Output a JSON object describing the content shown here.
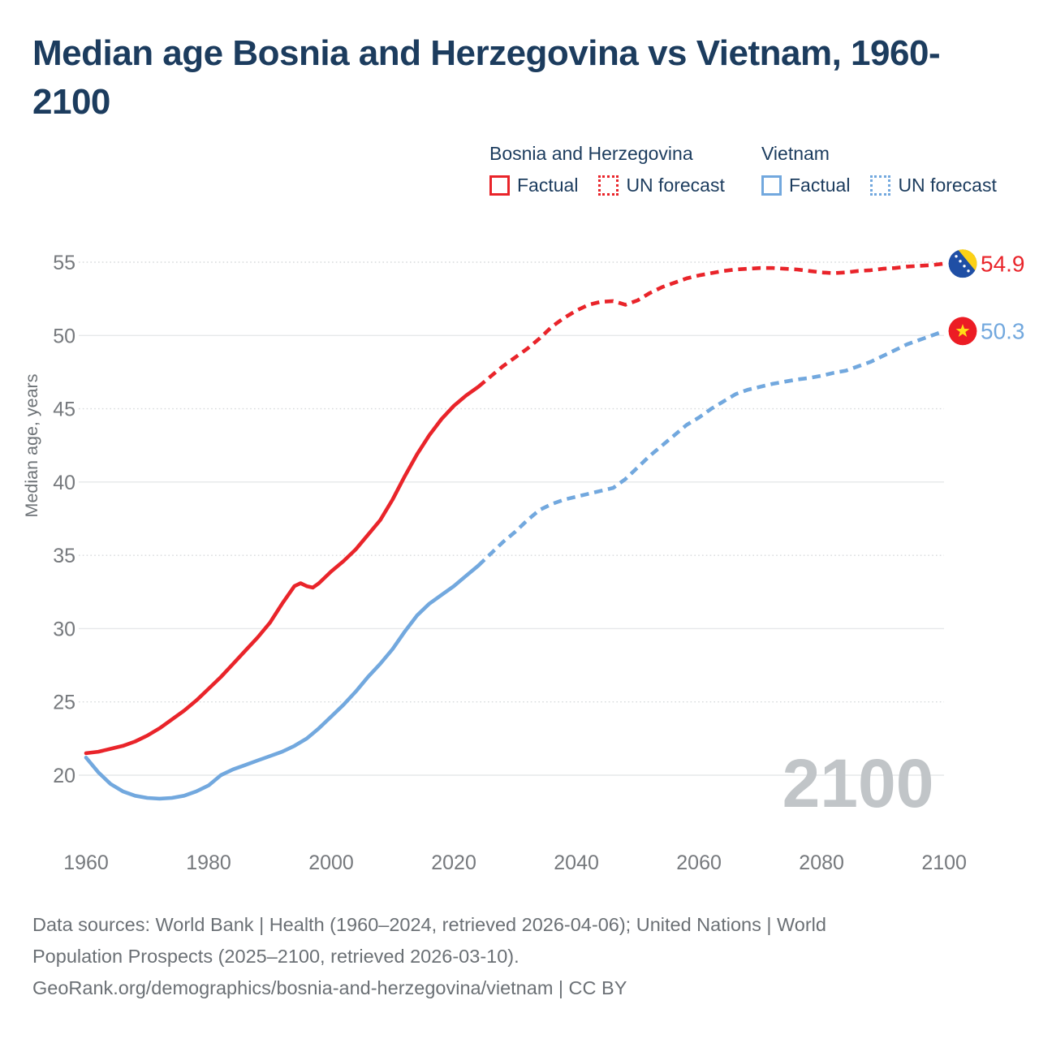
{
  "title": {
    "line1": "Median age Bosnia and Herzegovina vs Vietnam, 1960-",
    "line2": "2100"
  },
  "legend": {
    "groups": [
      {
        "name": "Bosnia and Herzegovina",
        "color": "#e9242a",
        "items": [
          {
            "label": "Factual",
            "line_style": "solid"
          },
          {
            "label": "UN forecast",
            "line_style": "dotted"
          }
        ]
      },
      {
        "name": "Vietnam",
        "color": "#72a8de",
        "items": [
          {
            "label": "Factual",
            "line_style": "solid"
          },
          {
            "label": "UN forecast",
            "line_style": "dotted"
          }
        ]
      }
    ]
  },
  "watermark": "2100",
  "y_axis": {
    "label": "Median age, years",
    "ticks": [
      20,
      25,
      30,
      35,
      40,
      45,
      50,
      55
    ]
  },
  "x_axis": {
    "ticks": [
      1960,
      1980,
      2000,
      2020,
      2040,
      2060,
      2080,
      2100
    ]
  },
  "end_labels": [
    {
      "id": "bosnia-and-herzegovina",
      "flag": "bosnia-and-herzegovina",
      "value": "54.9",
      "numeric": 54.9,
      "color": "#e9242a"
    },
    {
      "id": "vietnam",
      "flag": "vietnam",
      "value": "50.3",
      "numeric": 50.3,
      "color": "#72a8de"
    }
  ],
  "footer": {
    "lines": [
      "Data sources: World Bank | Health (1960–2024, retrieved 2026-04-06); United Nations | World",
      "Population Prospects (2025–2100, retrieved 2026-03-10).",
      "GeoRank.org/demographics/bosnia-and-herzegovina/vietnam | CC BY"
    ]
  },
  "theme": {
    "title_color": "#1c3c5e",
    "bosnia_color": "#e9242a",
    "vietnam_color": "#72a8de",
    "grid_solid": "#e6e8ea",
    "grid_dotted": "#d7dadc",
    "tick_color": "#76797d",
    "axis_label_color": "#6e7377",
    "watermark_color": "#c1c5c8",
    "footer_color": "#6b7075",
    "flag_bosnia_blue": "#1f4fa5",
    "flag_yellow": "#fcd116",
    "flag_vietnam_red": "#ec1c24",
    "flag_star_yellow": "#ffde17"
  },
  "chart_data": {
    "type": "line",
    "title": "Median age Bosnia and Herzegovina vs Vietnam, 1960-2100",
    "xlabel": "",
    "ylabel": "Median age, years",
    "xlim": [
      1958,
      2114
    ],
    "ylim": [
      16,
      57
    ],
    "grid": "horizontal",
    "legend_position": "top",
    "series": [
      {
        "id": "bosnia-factual",
        "name": "Bosnia and Herzegovina — Factual",
        "color": "#e9242a",
        "style": "solid",
        "points": [
          [
            1960,
            21.5
          ],
          [
            1962,
            21.6
          ],
          [
            1964,
            21.8
          ],
          [
            1966,
            22.0
          ],
          [
            1968,
            22.3
          ],
          [
            1970,
            22.7
          ],
          [
            1972,
            23.2
          ],
          [
            1974,
            23.8
          ],
          [
            1976,
            24.4
          ],
          [
            1978,
            25.1
          ],
          [
            1980,
            25.9
          ],
          [
            1982,
            26.7
          ],
          [
            1984,
            27.6
          ],
          [
            1986,
            28.5
          ],
          [
            1988,
            29.4
          ],
          [
            1990,
            30.4
          ],
          [
            1992,
            31.7
          ],
          [
            1994,
            32.9
          ],
          [
            1995,
            33.1
          ],
          [
            1996,
            32.9
          ],
          [
            1997,
            32.8
          ],
          [
            1998,
            33.1
          ],
          [
            2000,
            33.9
          ],
          [
            2002,
            34.6
          ],
          [
            2004,
            35.4
          ],
          [
            2006,
            36.4
          ],
          [
            2008,
            37.4
          ],
          [
            2010,
            38.8
          ],
          [
            2012,
            40.4
          ],
          [
            2014,
            41.9
          ],
          [
            2016,
            43.2
          ],
          [
            2018,
            44.3
          ],
          [
            2020,
            45.2
          ],
          [
            2022,
            45.9
          ],
          [
            2024,
            46.5
          ]
        ]
      },
      {
        "id": "bosnia-un-forecast",
        "name": "Bosnia and Herzegovina — UN forecast",
        "color": "#e9242a",
        "style": "dashed",
        "points": [
          [
            2024,
            46.5
          ],
          [
            2026,
            47.2
          ],
          [
            2028,
            47.9
          ],
          [
            2030,
            48.5
          ],
          [
            2032,
            49.1
          ],
          [
            2034,
            49.8
          ],
          [
            2036,
            50.6
          ],
          [
            2038,
            51.2
          ],
          [
            2040,
            51.7
          ],
          [
            2042,
            52.1
          ],
          [
            2044,
            52.3
          ],
          [
            2046,
            52.35
          ],
          [
            2048,
            52.1
          ],
          [
            2050,
            52.4
          ],
          [
            2052,
            52.9
          ],
          [
            2054,
            53.3
          ],
          [
            2056,
            53.6
          ],
          [
            2058,
            53.9
          ],
          [
            2060,
            54.1
          ],
          [
            2062,
            54.25
          ],
          [
            2064,
            54.4
          ],
          [
            2066,
            54.5
          ],
          [
            2068,
            54.55
          ],
          [
            2070,
            54.6
          ],
          [
            2072,
            54.6
          ],
          [
            2074,
            54.55
          ],
          [
            2076,
            54.5
          ],
          [
            2078,
            54.4
          ],
          [
            2080,
            54.3
          ],
          [
            2082,
            54.25
          ],
          [
            2084,
            54.3
          ],
          [
            2086,
            54.4
          ],
          [
            2088,
            54.45
          ],
          [
            2090,
            54.55
          ],
          [
            2092,
            54.6
          ],
          [
            2094,
            54.7
          ],
          [
            2096,
            54.75
          ],
          [
            2098,
            54.8
          ],
          [
            2100,
            54.9
          ]
        ]
      },
      {
        "id": "vietnam-factual",
        "name": "Vietnam — Factual",
        "color": "#72a8de",
        "style": "solid",
        "points": [
          [
            1960,
            21.2
          ],
          [
            1962,
            20.2
          ],
          [
            1964,
            19.4
          ],
          [
            1966,
            18.9
          ],
          [
            1968,
            18.6
          ],
          [
            1970,
            18.45
          ],
          [
            1972,
            18.4
          ],
          [
            1974,
            18.45
          ],
          [
            1976,
            18.6
          ],
          [
            1978,
            18.9
          ],
          [
            1980,
            19.3
          ],
          [
            1982,
            20.0
          ],
          [
            1984,
            20.4
          ],
          [
            1986,
            20.7
          ],
          [
            1988,
            21.0
          ],
          [
            1990,
            21.3
          ],
          [
            1992,
            21.6
          ],
          [
            1994,
            22.0
          ],
          [
            1996,
            22.5
          ],
          [
            1998,
            23.2
          ],
          [
            2000,
            24.0
          ],
          [
            2002,
            24.8
          ],
          [
            2004,
            25.7
          ],
          [
            2006,
            26.7
          ],
          [
            2008,
            27.6
          ],
          [
            2010,
            28.6
          ],
          [
            2012,
            29.8
          ],
          [
            2014,
            30.9
          ],
          [
            2016,
            31.7
          ],
          [
            2018,
            32.3
          ],
          [
            2020,
            32.9
          ],
          [
            2022,
            33.6
          ],
          [
            2024,
            34.3
          ]
        ]
      },
      {
        "id": "vietnam-un-forecast",
        "name": "Vietnam — UN forecast",
        "color": "#72a8de",
        "style": "dashed",
        "points": [
          [
            2024,
            34.3
          ],
          [
            2026,
            35.1
          ],
          [
            2028,
            35.9
          ],
          [
            2030,
            36.6
          ],
          [
            2032,
            37.4
          ],
          [
            2034,
            38.1
          ],
          [
            2036,
            38.5
          ],
          [
            2038,
            38.8
          ],
          [
            2040,
            39.0
          ],
          [
            2042,
            39.2
          ],
          [
            2044,
            39.4
          ],
          [
            2046,
            39.6
          ],
          [
            2048,
            40.2
          ],
          [
            2050,
            41.0
          ],
          [
            2052,
            41.8
          ],
          [
            2054,
            42.5
          ],
          [
            2056,
            43.2
          ],
          [
            2058,
            43.9
          ],
          [
            2060,
            44.4
          ],
          [
            2062,
            45.0
          ],
          [
            2064,
            45.5
          ],
          [
            2066,
            46.0
          ],
          [
            2068,
            46.3
          ],
          [
            2070,
            46.5
          ],
          [
            2072,
            46.7
          ],
          [
            2074,
            46.85
          ],
          [
            2076,
            47.0
          ],
          [
            2078,
            47.1
          ],
          [
            2080,
            47.25
          ],
          [
            2082,
            47.45
          ],
          [
            2084,
            47.6
          ],
          [
            2086,
            47.9
          ],
          [
            2088,
            48.2
          ],
          [
            2090,
            48.6
          ],
          [
            2092,
            49.0
          ],
          [
            2094,
            49.4
          ],
          [
            2096,
            49.7
          ],
          [
            2098,
            50.0
          ],
          [
            2100,
            50.3
          ]
        ]
      }
    ],
    "end_values": {
      "bosnia_and_herzegovina": 54.9,
      "vietnam": 50.3
    }
  }
}
